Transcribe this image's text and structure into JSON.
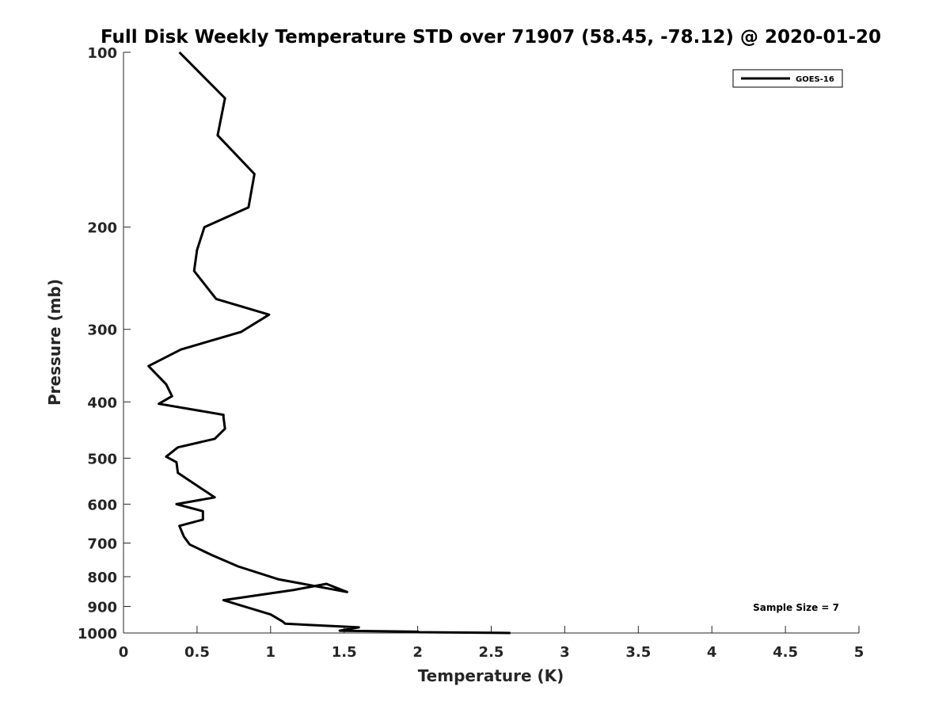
{
  "chart_data": {
    "type": "line",
    "title": "Full Disk Weekly Temperature STD over 71907 (58.45, -78.12) @ 2020-01-20",
    "xlabel": "Temperature (K)",
    "ylabel": "Pressure (mb)",
    "xlim": [
      0,
      5
    ],
    "ylim": [
      100,
      1000
    ],
    "y_scale": "log",
    "y_reversed": true,
    "grid": false,
    "legend_position": "top-right",
    "x_ticks": [
      "0",
      "0.5",
      "1",
      "1.5",
      "2",
      "2.5",
      "3",
      "3.5",
      "4",
      "4.5",
      "5"
    ],
    "y_ticks": [
      "100",
      "200",
      "300",
      "400",
      "500",
      "600",
      "700",
      "800",
      "900",
      "1000"
    ],
    "annotation": "Sample Size = 7",
    "line_color": "#000000",
    "series": [
      {
        "name": "GOES-16",
        "x": [
          0.38,
          0.69,
          0.64,
          0.89,
          0.85,
          0.55,
          0.5,
          0.48,
          0.63,
          0.99,
          0.8,
          0.39,
          0.17,
          0.29,
          0.33,
          0.24,
          0.68,
          0.68,
          0.69,
          0.62,
          0.37,
          0.29,
          0.36,
          0.37,
          0.62,
          0.36,
          0.54,
          0.54,
          0.38,
          0.41,
          0.45,
          0.6,
          0.78,
          1.05,
          1.52,
          1.38,
          1.16,
          0.68,
          1.0,
          1.08,
          1.1,
          1.6,
          1.47,
          2.0,
          2.01,
          2.63
        ],
        "y": [
          100,
          120,
          139,
          162,
          185,
          200,
          219,
          238,
          266,
          283,
          303,
          325,
          347,
          373,
          391,
          403,
          421,
          425,
          445,
          463,
          479,
          497,
          508,
          530,
          584,
          600,
          617,
          638,
          654,
          682,
          704,
          734,
          768,
          808,
          850,
          823,
          843,
          878,
          929,
          955,
          964,
          978,
          991,
          995,
          997,
          1000
        ]
      }
    ]
  }
}
